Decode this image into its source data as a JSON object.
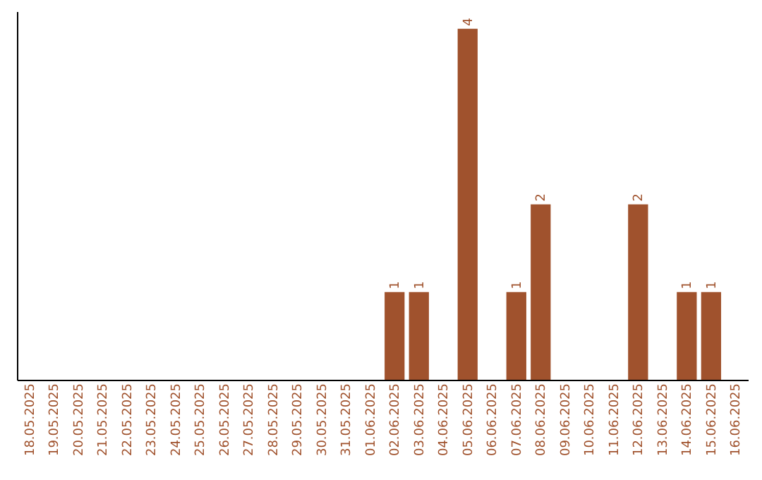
{
  "chart_data": {
    "type": "bar",
    "categories": [
      "18.05.2025",
      "19.05.2025",
      "20.05.2025",
      "21.05.2025",
      "22.05.2025",
      "23.05.2025",
      "24.05.2025",
      "25.05.2025",
      "26.05.2025",
      "27.05.2025",
      "28.05.2025",
      "29.05.2025",
      "30.05.2025",
      "31.05.2025",
      "01.06.2025",
      "02.06.2025",
      "03.06.2025",
      "04.06.2025",
      "05.06.2025",
      "06.06.2025",
      "07.06.2025",
      "08.06.2025",
      "09.06.2025",
      "10.06.2025",
      "11.06.2025",
      "12.06.2025",
      "13.06.2025",
      "14.06.2025",
      "15.06.2025",
      "16.06.2025"
    ],
    "values": [
      null,
      null,
      null,
      null,
      null,
      null,
      null,
      null,
      null,
      null,
      null,
      null,
      null,
      null,
      null,
      1,
      1,
      null,
      4,
      null,
      1,
      2,
      null,
      null,
      null,
      2,
      null,
      1,
      1,
      null
    ],
    "value_labels": [
      null,
      null,
      null,
      null,
      null,
      null,
      null,
      null,
      null,
      null,
      null,
      null,
      null,
      null,
      null,
      "1",
      "1",
      null,
      "4",
      null,
      "1",
      "2",
      null,
      null,
      null,
      "2",
      null,
      "1",
      "1",
      null
    ],
    "color": "#a0522d",
    "ylim": [
      0,
      4.2
    ],
    "tick_labels": "x",
    "grid": false
  }
}
